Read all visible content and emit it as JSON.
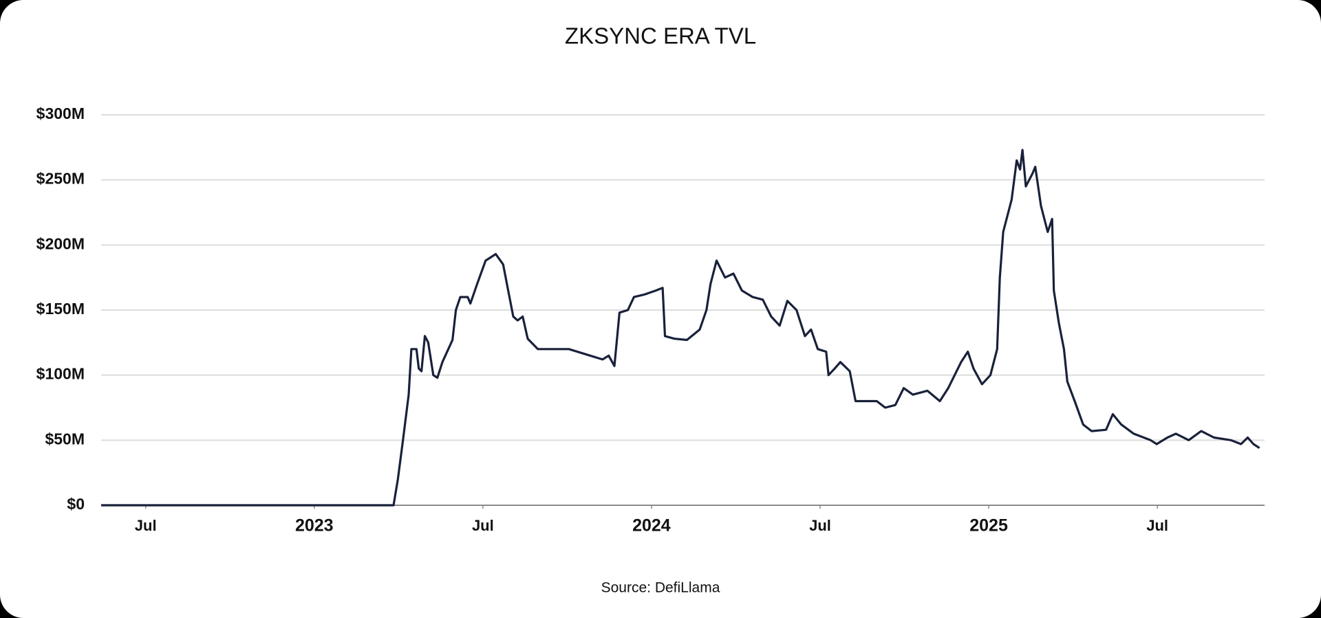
{
  "chart_data": {
    "type": "line",
    "title": "ZKSYNC ERA TVL",
    "source": "Source: DefiLlama",
    "color": "#19213a",
    "grid": true,
    "x": [
      2022.368,
      2023.235,
      2023.248,
      2023.263,
      2023.28,
      2023.288,
      2023.303,
      2023.31,
      2023.318,
      2023.328,
      2023.338,
      2023.353,
      2023.365,
      2023.38,
      2023.41,
      2023.42,
      2023.433,
      2023.455,
      2023.463,
      2023.483,
      2023.508,
      2023.538,
      2023.56,
      2023.575,
      2023.59,
      2023.603,
      2023.618,
      2023.633,
      2023.663,
      2023.693,
      2023.718,
      2023.755,
      2023.818,
      2023.855,
      2023.873,
      2023.89,
      2023.905,
      2023.93,
      2023.948,
      2023.98,
      2024.013,
      2024.033,
      2024.04,
      2024.068,
      2024.105,
      2024.143,
      2024.163,
      2024.175,
      2024.193,
      2024.218,
      2024.243,
      2024.268,
      2024.3,
      2024.33,
      2024.355,
      2024.38,
      2024.403,
      2024.43,
      2024.455,
      2024.473,
      2024.493,
      2024.518,
      2024.525,
      2024.543,
      2024.56,
      2024.588,
      2024.605,
      2024.643,
      2024.668,
      2024.693,
      2024.723,
      2024.748,
      2024.775,
      2024.818,
      2024.855,
      2024.88,
      2024.918,
      2024.938,
      2024.955,
      2024.98,
      2025.005,
      2025.025,
      2025.033,
      2025.043,
      2025.058,
      2025.068,
      2025.083,
      2025.093,
      2025.1,
      2025.11,
      2025.13,
      2025.138,
      2025.155,
      2025.175,
      2025.188,
      2025.193,
      2025.208,
      2025.223,
      2025.233,
      2025.255,
      2025.28,
      2025.305,
      2025.348,
      2025.368,
      2025.393,
      2025.43,
      2025.48,
      2025.498,
      2025.53,
      2025.555,
      2025.593,
      2025.63,
      2025.668,
      2025.718,
      2025.748,
      2025.768,
      2025.785,
      2025.803
    ],
    "values": [
      0,
      0,
      20,
      50,
      85,
      120,
      120,
      105,
      103,
      130,
      125,
      100,
      98,
      110,
      127,
      150,
      160,
      160,
      155,
      170,
      188,
      193,
      185,
      165,
      145,
      142,
      145,
      128,
      120,
      120,
      120,
      120,
      115,
      112,
      115,
      107,
      148,
      150,
      160,
      162,
      165,
      167,
      130,
      128,
      127,
      135,
      150,
      170,
      188,
      175,
      178,
      165,
      160,
      158,
      145,
      138,
      157,
      150,
      130,
      135,
      120,
      118,
      100,
      105,
      110,
      103,
      80,
      80,
      80,
      75,
      77,
      90,
      85,
      88,
      80,
      90,
      110,
      118,
      105,
      93,
      100,
      120,
      175,
      210,
      225,
      235,
      265,
      258,
      273,
      245,
      255,
      260,
      230,
      210,
      220,
      165,
      140,
      120,
      95,
      80,
      62,
      57,
      58,
      70,
      62,
      55,
      50,
      47,
      52,
      55,
      50,
      57,
      52,
      50,
      47,
      52,
      47,
      44
    ],
    "xlim": [
      2022.368,
      2025.818
    ],
    "xticks": [
      {
        "value": 2022.5,
        "label": "Jul"
      },
      2023,
      {
        "value": 2023.5,
        "label": "Jul"
      },
      2024,
      {
        "value": 2024.5,
        "label": "Jul"
      },
      2025,
      {
        "value": 2025.5,
        "label": "Jul"
      }
    ],
    "ylim": [
      0,
      300
    ],
    "yticks": [
      {
        "value": 0,
        "label": "$0"
      },
      {
        "value": 50,
        "label": "$50M"
      },
      {
        "value": 100,
        "label": "$100M"
      },
      {
        "value": 150,
        "label": "$150M"
      },
      {
        "value": 200,
        "label": "$200M"
      },
      {
        "value": 250,
        "label": "$250M"
      },
      {
        "value": 300,
        "label": "$300M"
      }
    ]
  }
}
